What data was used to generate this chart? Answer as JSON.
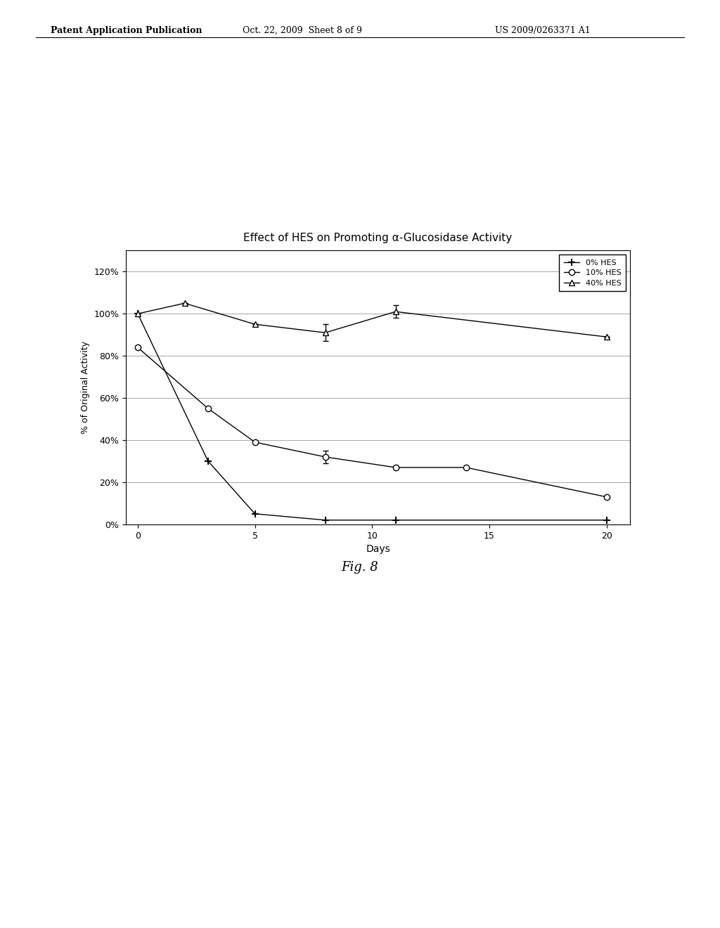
{
  "title": "Effect of HES on Promoting α-Glucosidase Activity",
  "xlabel": "Days",
  "ylabel": "% of Original Activity",
  "xlim": [
    -0.5,
    21
  ],
  "ylim": [
    0,
    130
  ],
  "yticks": [
    0,
    20,
    40,
    60,
    80,
    100,
    120
  ],
  "ytick_labels": [
    "0%",
    "20%",
    "40%",
    "60%",
    "80%",
    "100%",
    "120%"
  ],
  "xticks": [
    0,
    5,
    10,
    15,
    20
  ],
  "series_0_x": [
    0,
    3,
    5,
    8,
    11,
    20
  ],
  "series_0_y": [
    100,
    30,
    5,
    2,
    2,
    2
  ],
  "series_0_yerr": [
    0,
    0,
    0,
    0,
    0,
    0
  ],
  "series_1_x": [
    0,
    3,
    5,
    8,
    11,
    14,
    20
  ],
  "series_1_y": [
    84,
    55,
    39,
    32,
    27,
    27,
    13
  ],
  "series_1_yerr": [
    0,
    0,
    0,
    3,
    0,
    0,
    0
  ],
  "series_2_x": [
    0,
    2,
    5,
    8,
    11,
    20
  ],
  "series_2_y": [
    100,
    105,
    95,
    91,
    101,
    89
  ],
  "series_2_yerr": [
    0,
    0,
    0,
    4,
    3,
    0
  ],
  "header_left": "Patent Application Publication",
  "header_center": "Oct. 22, 2009  Sheet 8 of 9",
  "header_right": "US 2009/0263371 A1",
  "fig_label": "Fig. 8",
  "background_color": "#ffffff",
  "plot_bg_color": "#ffffff",
  "grid_color": "#999999",
  "text_color": "#000000"
}
